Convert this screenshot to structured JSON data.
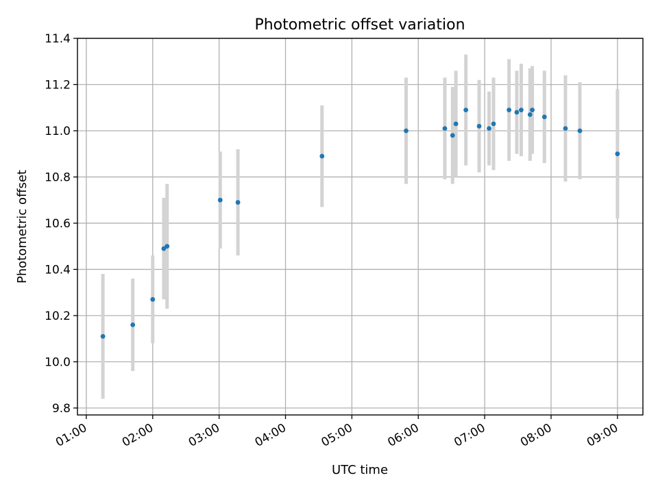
{
  "chart_data": {
    "type": "scatter",
    "title": "Photometric offset variation",
    "xlabel": "UTC time",
    "ylabel": "Photometric offset",
    "xlim": [
      "00:52",
      "09:23"
    ],
    "ylim": [
      9.77,
      11.4
    ],
    "x_ticks": [
      "01:00",
      "02:00",
      "03:00",
      "04:00",
      "05:00",
      "06:00",
      "07:00",
      "08:00",
      "09:00"
    ],
    "y_ticks": [
      "9.8",
      "10.0",
      "10.2",
      "10.4",
      "10.6",
      "10.8",
      "11.0",
      "11.2",
      "11.4"
    ],
    "grid": true,
    "colors": {
      "points": "#1f77b4",
      "errorbars": "#d3d3d3",
      "grid": "#b0b0b0"
    },
    "series": [
      {
        "points": [
          {
            "x": "01:15",
            "y": 10.11,
            "err": 0.27
          },
          {
            "x": "01:42",
            "y": 10.16,
            "err": 0.2
          },
          {
            "x": "02:00",
            "y": 10.27,
            "err": 0.19
          },
          {
            "x": "02:10",
            "y": 10.49,
            "err": 0.22
          },
          {
            "x": "02:13",
            "y": 10.5,
            "err": 0.27
          },
          {
            "x": "03:01",
            "y": 10.7,
            "err": 0.21
          },
          {
            "x": "03:17",
            "y": 10.69,
            "err": 0.23
          },
          {
            "x": "04:33",
            "y": 10.89,
            "err": 0.22
          },
          {
            "x": "05:49",
            "y": 11.0,
            "err": 0.23
          },
          {
            "x": "06:24",
            "y": 11.01,
            "err": 0.22
          },
          {
            "x": "06:31",
            "y": 10.98,
            "err": 0.21
          },
          {
            "x": "06:34",
            "y": 11.03,
            "err": 0.23
          },
          {
            "x": "06:43",
            "y": 11.09,
            "err": 0.24
          },
          {
            "x": "06:55",
            "y": 11.02,
            "err": 0.2
          },
          {
            "x": "07:04",
            "y": 11.01,
            "err": 0.16
          },
          {
            "x": "07:08",
            "y": 11.03,
            "err": 0.2
          },
          {
            "x": "07:22",
            "y": 11.09,
            "err": 0.22
          },
          {
            "x": "07:29",
            "y": 11.08,
            "err": 0.18
          },
          {
            "x": "07:33",
            "y": 11.09,
            "err": 0.2
          },
          {
            "x": "07:41",
            "y": 11.07,
            "err": 0.2
          },
          {
            "x": "07:43",
            "y": 11.09,
            "err": 0.19
          },
          {
            "x": "07:54",
            "y": 11.06,
            "err": 0.2
          },
          {
            "x": "08:13",
            "y": 11.01,
            "err": 0.23
          },
          {
            "x": "08:26",
            "y": 11.0,
            "err": 0.21
          },
          {
            "x": "09:00",
            "y": 10.9,
            "err": 0.28
          }
        ]
      }
    ]
  }
}
